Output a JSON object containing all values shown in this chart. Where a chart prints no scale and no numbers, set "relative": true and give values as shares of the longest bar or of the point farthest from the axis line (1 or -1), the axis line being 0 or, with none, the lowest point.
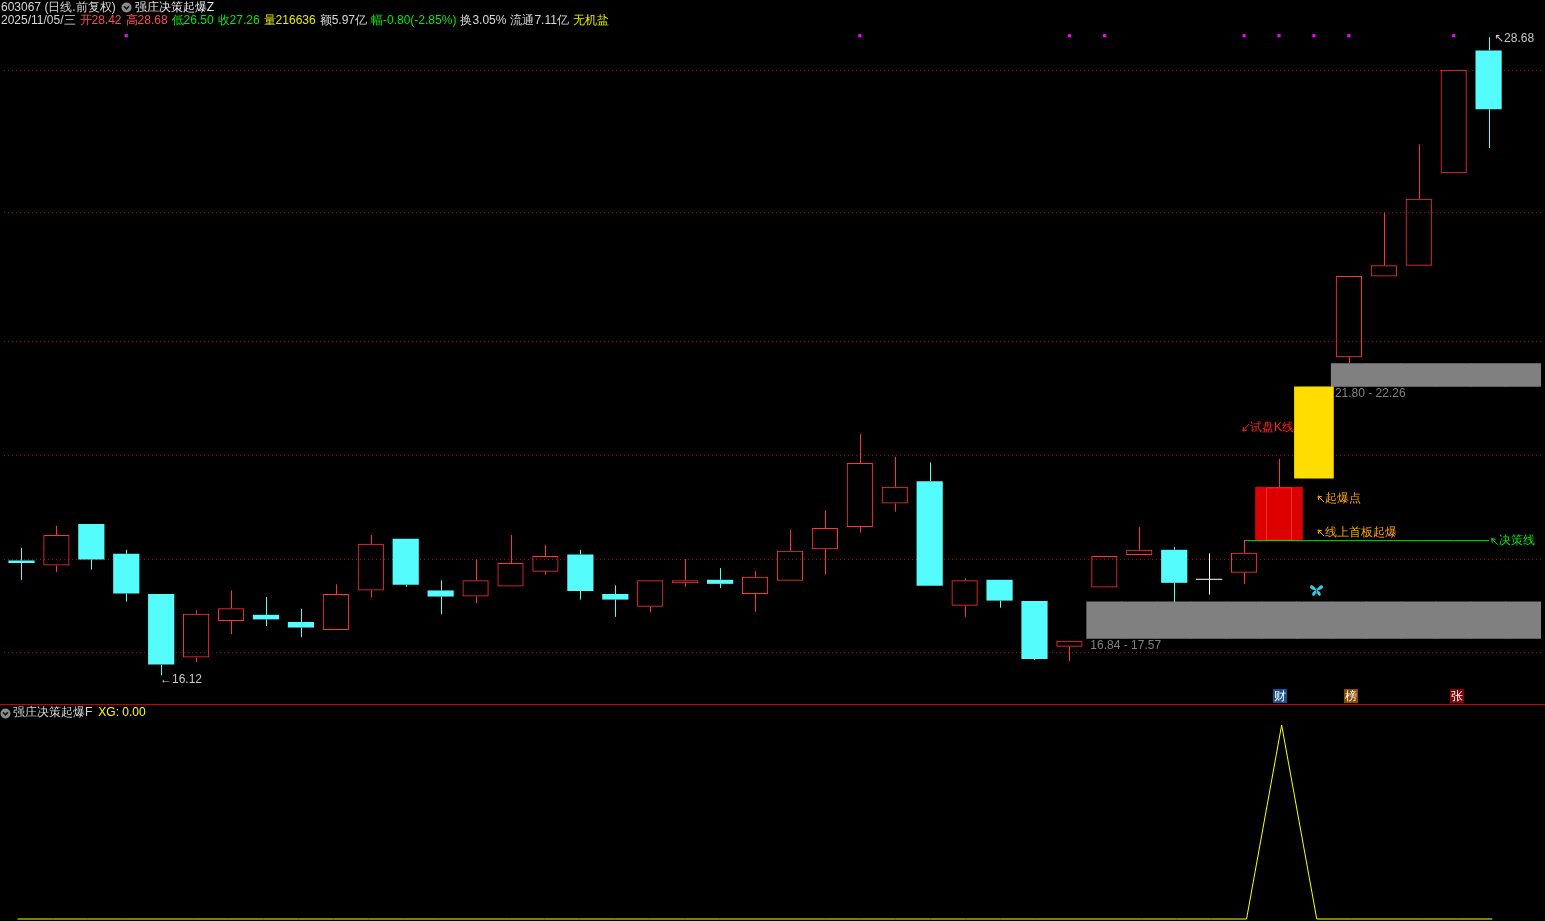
{
  "chart_data": [
    {
      "type": "candlestick",
      "title": "603067 (日线.前复权)",
      "subtitle": "强庄决策起爆Z",
      "categories": [
        null,
        null,
        null,
        null,
        null,
        null,
        null,
        null,
        null,
        null,
        null,
        null,
        null,
        null,
        null,
        null,
        null,
        null,
        null,
        null,
        null,
        null,
        null,
        null,
        null,
        null,
        null,
        null,
        null,
        null,
        null,
        null,
        null,
        null,
        null,
        null,
        null,
        null,
        null,
        null,
        null,
        null,
        null,
        null
      ],
      "ohlc": [
        [
          18.38,
          18.63,
          18.0,
          18.33
        ],
        [
          18.28,
          19.06,
          18.15,
          18.88
        ],
        [
          19.1,
          19.1,
          18.2,
          18.4
        ],
        [
          18.51,
          18.59,
          17.57,
          17.73
        ],
        [
          17.72,
          17.72,
          16.12,
          16.33
        ],
        [
          16.47,
          17.4,
          16.38,
          17.33
        ],
        [
          17.19,
          17.79,
          16.93,
          17.44
        ],
        [
          17.31,
          17.66,
          17.09,
          17.22
        ],
        [
          17.17,
          17.43,
          16.87,
          17.06
        ],
        [
          17.01,
          17.91,
          17.01,
          17.72
        ],
        [
          17.79,
          18.88,
          17.65,
          18.71
        ],
        [
          18.81,
          18.81,
          17.86,
          17.9
        ],
        [
          17.79,
          17.99,
          17.32,
          17.67
        ],
        [
          17.67,
          18.4,
          17.54,
          17.99
        ],
        [
          17.87,
          18.88,
          17.87,
          18.33
        ],
        [
          18.16,
          18.69,
          18.1,
          18.47
        ],
        [
          18.5,
          18.59,
          17.61,
          17.78
        ],
        [
          17.72,
          17.89,
          17.27,
          17.61
        ],
        [
          17.47,
          17.99,
          17.36,
          17.99
        ],
        [
          17.93,
          18.41,
          17.86,
          17.99
        ],
        [
          18.0,
          18.23,
          17.84,
          17.92
        ],
        [
          17.72,
          18.17,
          17.37,
          18.06
        ],
        [
          17.98,
          18.98,
          17.98,
          18.57
        ],
        [
          18.6,
          19.37,
          18.11,
          19.02
        ],
        [
          19.04,
          20.87,
          18.93,
          20.3
        ],
        [
          19.5,
          20.42,
          19.34,
          19.83
        ],
        [
          19.94,
          20.31,
          17.88,
          17.88
        ],
        [
          17.49,
          18.03,
          17.27,
          17.99
        ],
        [
          18.0,
          18.0,
          17.45,
          17.59
        ],
        [
          17.58,
          17.58,
          16.42,
          16.44
        ],
        [
          16.68,
          16.8,
          16.4,
          16.8
        ],
        [
          17.85,
          18.47,
          17.85,
          18.47
        ],
        [
          18.49,
          19.04,
          18.49,
          18.59
        ],
        [
          18.59,
          18.65,
          17.56,
          17.94
        ],
        [
          18.01,
          18.52,
          17.71,
          18.01
        ],
        [
          18.14,
          18.78,
          17.92,
          18.53
        ],
        [
          18.77,
          20.38,
          18.77,
          19.82
        ],
        [
          20.0,
          21.8,
          20.0,
          21.8
        ],
        [
          22.38,
          23.98,
          22.26,
          23.98
        ],
        [
          23.97,
          25.23,
          23.97,
          24.19
        ],
        [
          24.18,
          26.57,
          24.18,
          25.5
        ],
        [
          26.0,
          28.04,
          26.0,
          28.04
        ],
        [
          28.42,
          28.68,
          26.5,
          27.26
        ],
        null
      ],
      "colors": [
        "#54fcfc",
        "#ff3232",
        "#54fcfc",
        "#54fcfc",
        "#54fcfc",
        "#ff3232",
        "#ff3232",
        "#54fcfc",
        "#54fcfc",
        "#ff3232",
        "#ff3232",
        "#54fcfc",
        "#54fcfc",
        "#ff3232",
        "#ff3232",
        "#ff3232",
        "#54fcfc",
        "#54fcfc",
        "#ff3232",
        "#ff3232",
        "#54fcfc",
        "#ff3232",
        "#ff3232",
        "#ff3232",
        "#ff3232",
        "#ff3232",
        "#54fcfc",
        "#ff3232",
        "#54fcfc",
        "#54fcfc",
        "#ff3232",
        "#ff3232",
        "#ff3232",
        "#54fcfc",
        "#ffffff",
        "#ff3232",
        "#ff3232",
        "#ffdd00",
        "#ff3232",
        "#ff3232",
        "#ff3232",
        "#ff3232",
        "#54fcfc",
        null
      ],
      "series": [
        {
          "type": "bar",
          "name": "16.84 - 17.57",
          "color": "#808080",
          "base": [
            null,
            null,
            null,
            null,
            null,
            null,
            null,
            null,
            null,
            null,
            null,
            null,
            null,
            null,
            null,
            null,
            null,
            null,
            null,
            null,
            null,
            null,
            null,
            null,
            null,
            null,
            null,
            null,
            null,
            null,
            null,
            16.84,
            16.84,
            16.84,
            16.84,
            16.84,
            16.84,
            16.84,
            16.84,
            16.84,
            16.84,
            16.84,
            16.84,
            16.84
          ],
          "values": [
            null,
            null,
            null,
            null,
            null,
            null,
            null,
            null,
            null,
            null,
            null,
            null,
            null,
            null,
            null,
            null,
            null,
            null,
            null,
            null,
            null,
            null,
            null,
            null,
            null,
            null,
            null,
            null,
            null,
            null,
            null,
            0.73,
            0.73,
            0.73,
            0.73,
            0.73,
            0.73,
            0.73,
            0.73,
            0.73,
            0.73,
            0.73,
            0.73,
            0.73
          ]
        },
        {
          "type": "bar",
          "name": "21.80 - 22.26",
          "color": "#808080",
          "base": [
            null,
            null,
            null,
            null,
            null,
            null,
            null,
            null,
            null,
            null,
            null,
            null,
            null,
            null,
            null,
            null,
            null,
            null,
            null,
            null,
            null,
            null,
            null,
            null,
            null,
            null,
            null,
            null,
            null,
            null,
            null,
            null,
            null,
            null,
            null,
            null,
            null,
            null,
            21.8,
            21.8,
            21.8,
            21.8,
            21.8,
            21.8
          ],
          "values": [
            null,
            null,
            null,
            null,
            null,
            null,
            null,
            null,
            null,
            null,
            null,
            null,
            null,
            null,
            null,
            null,
            null,
            null,
            null,
            null,
            null,
            null,
            null,
            null,
            null,
            null,
            null,
            null,
            null,
            null,
            null,
            null,
            null,
            null,
            null,
            null,
            null,
            null,
            0.46,
            0.46,
            0.46,
            0.46,
            0.46,
            0.46
          ]
        },
        {
          "type": "bar",
          "color": "#dd0000",
          "base": [
            null,
            null,
            null,
            null,
            null,
            null,
            null,
            null,
            null,
            null,
            null,
            null,
            null,
            null,
            null,
            null,
            null,
            null,
            null,
            null,
            null,
            null,
            null,
            null,
            null,
            null,
            null,
            null,
            null,
            null,
            null,
            null,
            null,
            null,
            null,
            null,
            18.77,
            null,
            null,
            null,
            null,
            null,
            null,
            null
          ],
          "values": [
            null,
            null,
            null,
            null,
            null,
            null,
            null,
            null,
            null,
            null,
            null,
            null,
            null,
            null,
            null,
            null,
            null,
            null,
            null,
            null,
            null,
            null,
            null,
            null,
            null,
            null,
            null,
            null,
            null,
            null,
            null,
            null,
            null,
            null,
            null,
            null,
            1.05,
            null,
            null,
            null,
            null,
            null,
            null,
            null
          ]
        },
        {
          "type": "bar",
          "color": "#ffdd00",
          "base": [
            null,
            null,
            null,
            null,
            null,
            null,
            null,
            null,
            null,
            null,
            null,
            null,
            null,
            null,
            null,
            null,
            null,
            null,
            null,
            null,
            null,
            null,
            null,
            null,
            null,
            null,
            null,
            null,
            null,
            null,
            null,
            null,
            null,
            null,
            null,
            null,
            null,
            20.0,
            null,
            null,
            null,
            null,
            null,
            null
          ],
          "values": [
            null,
            null,
            null,
            null,
            null,
            null,
            null,
            null,
            null,
            null,
            null,
            null,
            null,
            null,
            null,
            null,
            null,
            null,
            null,
            null,
            null,
            null,
            null,
            null,
            null,
            null,
            null,
            null,
            null,
            null,
            null,
            null,
            null,
            null,
            null,
            null,
            null,
            1.8,
            null,
            null,
            null,
            null,
            null,
            null
          ]
        },
        {
          "type": "line",
          "name": "决策线",
          "color": "#00e600",
          "values": [
            null,
            null,
            null,
            null,
            null,
            null,
            null,
            null,
            null,
            null,
            null,
            null,
            null,
            null,
            null,
            null,
            null,
            null,
            null,
            null,
            null,
            null,
            null,
            null,
            null,
            null,
            null,
            null,
            null,
            null,
            null,
            null,
            null,
            null,
            null,
            18.77,
            18.77,
            18.77,
            18.77,
            18.77,
            18.77,
            18.77,
            18.77,
            null
          ]
        },
        {
          "type": "scatter",
          "color": "#ff00ff",
          "marker": "square",
          "values": [
            null,
            null,
            null,
            28.71,
            null,
            null,
            null,
            null,
            null,
            null,
            null,
            null,
            null,
            null,
            null,
            null,
            null,
            null,
            null,
            null,
            null,
            null,
            null,
            null,
            28.71,
            null,
            null,
            null,
            null,
            null,
            28.71,
            28.71,
            null,
            null,
            null,
            28.71,
            28.71,
            28.71,
            28.71,
            null,
            null,
            28.71,
            null,
            null
          ]
        }
      ],
      "ref_lines": [
        {
          "axis": "y",
          "value": 16.57,
          "color": "#b00000",
          "line_style": "dotted"
        },
        {
          "axis": "y",
          "value": 18.41,
          "color": "#b00000",
          "line_style": "dotted"
        },
        {
          "axis": "y",
          "value": 20.46,
          "color": "#b00000",
          "line_style": "dotted"
        },
        {
          "axis": "y",
          "value": 22.71,
          "color": "#b00000",
          "line_style": "dotted"
        },
        {
          "axis": "y",
          "value": 25.24,
          "color": "#b00000",
          "line_style": "dotted"
        },
        {
          "axis": "y",
          "value": 28.04,
          "color": "#b00000",
          "line_style": "dotted"
        }
      ],
      "annotations": [
        "2025/11/05/三",
        "开28.42",
        "高28.68",
        "低26.50",
        "收27.26",
        "量216636",
        "额5.97亿",
        "幅-0.80(-2.85%)",
        "换3.05%",
        "流通7.11亿",
        "无机盐",
        "↖28.68",
        "←16.12",
        "起爆点",
        "线上首板起爆",
        "试盘K线",
        "财",
        "榜",
        "张"
      ]
    },
    {
      "type": "line",
      "title": "强庄决策起爆F",
      "categories": [
        null,
        null,
        null,
        null,
        null,
        null,
        null,
        null,
        null,
        null,
        null,
        null,
        null,
        null,
        null,
        null,
        null,
        null,
        null,
        null,
        null,
        null,
        null,
        null,
        null,
        null,
        null,
        null,
        null,
        null,
        null,
        null,
        null,
        null,
        null,
        null,
        null,
        null,
        null,
        null,
        null,
        null,
        null,
        null
      ],
      "values": [
        0,
        0,
        0,
        0,
        0,
        0,
        0,
        0,
        0,
        0,
        0,
        0,
        0,
        0,
        0,
        0,
        0,
        0,
        0,
        0,
        0,
        0,
        0,
        0,
        0,
        0,
        0,
        0,
        0,
        0,
        0,
        0,
        0,
        0,
        0,
        0,
        1,
        0,
        0,
        0,
        0,
        0,
        0,
        null
      ],
      "color": "#ffff00",
      "relative": true,
      "annotations": [
        "XG: 0.00"
      ]
    }
  ]
}
